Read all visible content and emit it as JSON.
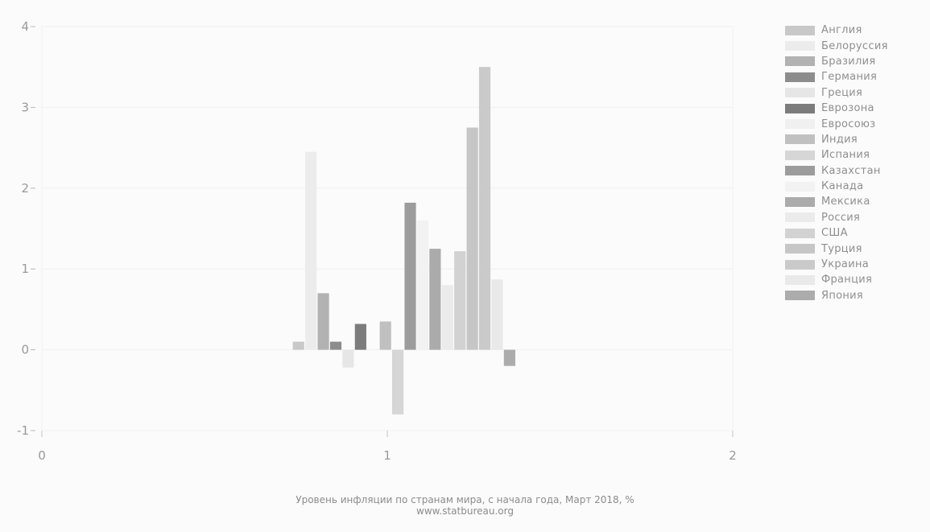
{
  "chart_data": {
    "type": "bar",
    "title": "Уровень инфляции по странам мира, с начала года, Март 2018, %",
    "subtitle": "www.statbureau.org",
    "xlabel": "",
    "ylabel": "",
    "xlim": [
      0,
      2
    ],
    "ylim": [
      -1,
      4
    ],
    "x_ticks": [
      "0",
      "1",
      "2"
    ],
    "y_ticks": [
      "-1",
      "0",
      "1",
      "2",
      "3",
      "4"
    ],
    "grid": false,
    "legend_position": "right",
    "series": [
      {
        "name": "Англия",
        "value": 0.1,
        "color": "#c8c8c8"
      },
      {
        "name": "Белоруссия",
        "value": 2.45,
        "color": "#ececec"
      },
      {
        "name": "Бразилия",
        "value": 0.7,
        "color": "#b2b2b2"
      },
      {
        "name": "Германия",
        "value": 0.1,
        "color": "#8c8c8c"
      },
      {
        "name": "Греция",
        "value": -0.22,
        "color": "#e6e6e6"
      },
      {
        "name": "Еврозона",
        "value": 0.32,
        "color": "#7c7c7c"
      },
      {
        "name": "Евросоюз",
        "value": 0.0,
        "color": "#f0f0f0"
      },
      {
        "name": "Индия",
        "value": 0.35,
        "color": "#c0c0c0"
      },
      {
        "name": "Испания",
        "value": -0.8,
        "color": "#d6d6d6"
      },
      {
        "name": "Казахстан",
        "value": 1.82,
        "color": "#9c9c9c"
      },
      {
        "name": "Канада",
        "value": 1.6,
        "color": "#f2f2f2"
      },
      {
        "name": "Мексика",
        "value": 1.25,
        "color": "#ababab"
      },
      {
        "name": "Россия",
        "value": 0.8,
        "color": "#ebebeb"
      },
      {
        "name": "США",
        "value": 1.22,
        "color": "#d2d2d2"
      },
      {
        "name": "Турция",
        "value": 2.75,
        "color": "#c6c6c6"
      },
      {
        "name": "Украина",
        "value": 3.5,
        "color": "#cacaca"
      },
      {
        "name": "Франция",
        "value": 0.87,
        "color": "#e9e9e9"
      },
      {
        "name": "Япония",
        "value": -0.2,
        "color": "#acacac"
      }
    ]
  }
}
